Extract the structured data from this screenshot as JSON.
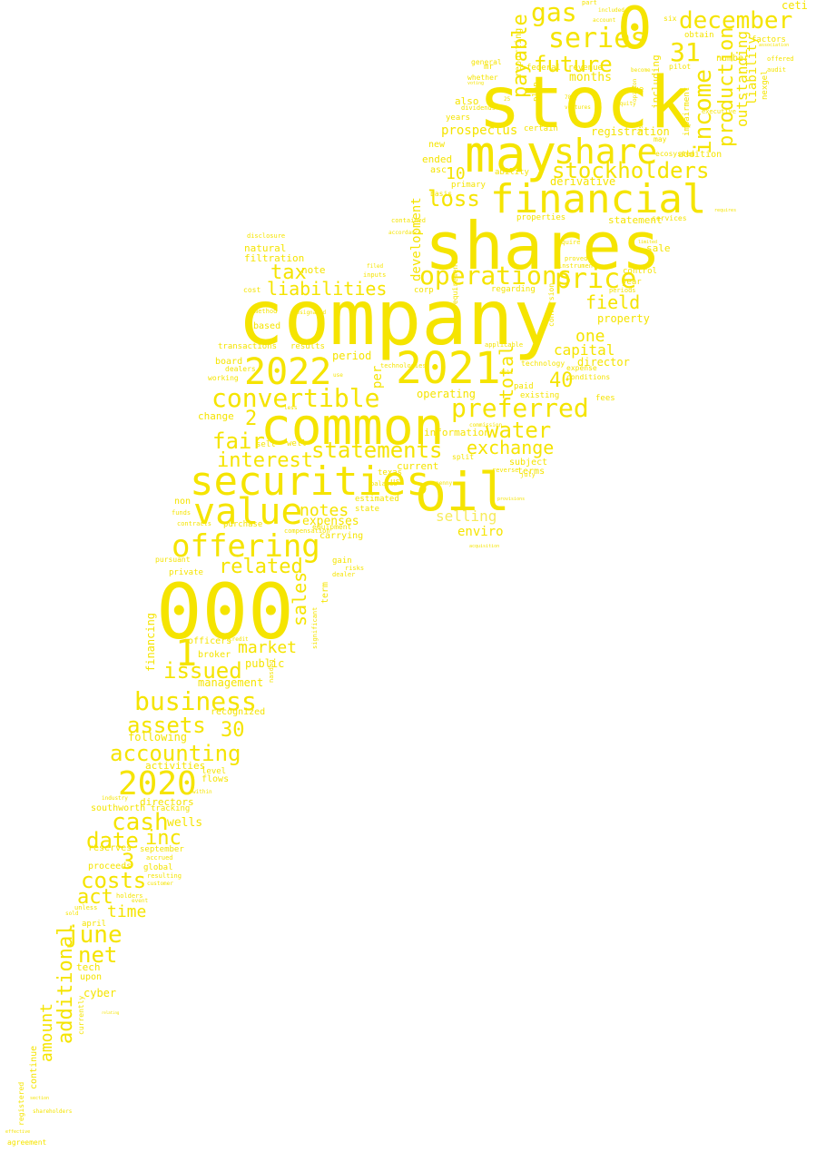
{
  "colors": {
    "background": "#ffffff",
    "word": "#f5e400",
    "word_faint": "#f7eb5c"
  },
  "words": [
    "stock",
    "shares",
    "company",
    "000",
    "common",
    "may",
    "financial",
    "securities",
    "oil",
    "0",
    "2021",
    "2022",
    "value",
    "offering",
    "december",
    "share",
    "stockholders",
    "preferred",
    "convertible",
    "operations",
    "price",
    "statements",
    "business",
    "2020",
    "accounting",
    "income",
    "production",
    "gas",
    "series",
    "future",
    "31",
    "loss",
    "payable",
    "liabilities",
    "interest",
    "fair",
    "water",
    "exchange",
    "related",
    "issued",
    "assets",
    "cash",
    "date",
    "inc",
    "costs",
    "act",
    "june",
    "net",
    "additional",
    "amount",
    "market",
    "notes",
    "sales",
    "tax",
    "field",
    "capital",
    "selling",
    "enviro",
    "total",
    "development",
    "one",
    "40",
    "30",
    "10",
    "2",
    "1",
    "3",
    "time",
    "prospectus",
    "registration",
    "derivative",
    "months",
    "statement",
    "property",
    "director",
    "expenses",
    "management",
    "financing",
    "reserves",
    "directors",
    "southworth",
    "wells",
    "activities",
    "flows",
    "september",
    "proceeds",
    "cyber",
    "tech",
    "upon",
    "continue",
    "registered",
    "following",
    "recognized",
    "public",
    "officers",
    "broker",
    "pursuant",
    "level",
    "change",
    "operating",
    "current",
    "information",
    "subject",
    "terms",
    "outstanding",
    "liability",
    "including",
    "ceti",
    "addition",
    "number",
    "factors",
    "natural",
    "filtration",
    "note",
    "transactions",
    "results",
    "board",
    "period",
    "dealers",
    "working",
    "based",
    "cost",
    "disclosure",
    "sell",
    "well",
    "purchase",
    "contracts",
    "funds",
    "non",
    "carrying",
    "equipment",
    "state",
    "estimated",
    "per",
    "us",
    "texas",
    "also",
    "ended",
    "new",
    "asc",
    "basis",
    "primary",
    "ability",
    "properties",
    "services",
    "sale",
    "control",
    "year",
    "fees",
    "paid",
    "existing",
    "expense",
    "reporting",
    "whether",
    "mr",
    "general",
    "dividends",
    "years",
    "certain",
    "federal",
    "revenue",
    "due",
    "part",
    "included",
    "six",
    "obtain",
    "pilot",
    "plan",
    "may",
    "ecosystem",
    "risk",
    "nexgel",
    "impairment",
    "executive",
    "offered",
    "audit",
    "gain",
    "risks",
    "dealer",
    "term",
    "significant",
    "compensation",
    "private",
    "less",
    "reverse",
    "split",
    "commission",
    "conditions",
    "instruments",
    "require",
    "proved",
    "periods",
    "accordance",
    "contained",
    "inputs",
    "filed",
    "balance",
    "corp",
    "regarding",
    "requirements",
    "conversion",
    "applicable",
    "technology",
    "technologies",
    "use",
    "method",
    "designated",
    "debt",
    "penny",
    "july",
    "accrued",
    "resulting",
    "customer",
    "global",
    "event",
    "sold",
    "unless",
    "holders",
    "april",
    "currently",
    "shareholders",
    "section",
    "within",
    "tracking",
    "industry",
    "effective",
    "agreement",
    "voting",
    "25",
    "780",
    "ventures",
    "become",
    "account",
    "opinion",
    "requires",
    "limited",
    "provisions",
    "acquisition",
    "nasdaq",
    "credit",
    "relating",
    "equity",
    "association",
    "governing",
    "shall",
    "units"
  ]
}
